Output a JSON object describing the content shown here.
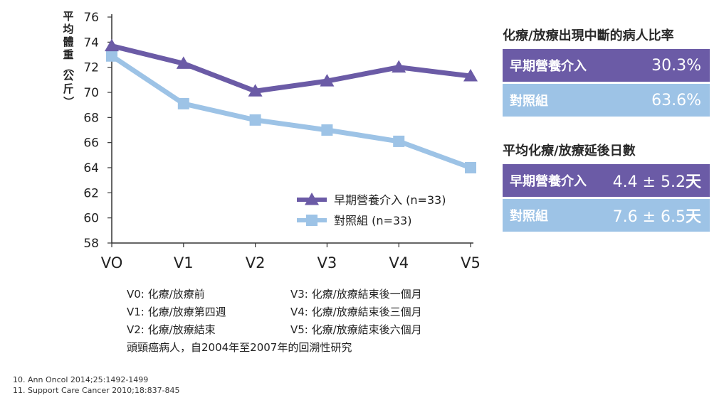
{
  "chart_data": {
    "type": "line",
    "title": "",
    "ylabel": "平均體重（公斤）",
    "xlabel": "",
    "categories": [
      "VO",
      "V1",
      "V2",
      "V3",
      "V4",
      "V5"
    ],
    "ylim": [
      58,
      76
    ],
    "yticks": [
      58,
      60,
      62,
      64,
      66,
      68,
      70,
      72,
      74,
      76
    ],
    "grid": false,
    "legend_position": "bottom-right",
    "series": [
      {
        "name": "早期營養介入 (n=33)",
        "marker": "triangle",
        "color": "#6b5ba6",
        "values": [
          73.7,
          72.3,
          70.1,
          70.9,
          72.0,
          71.3
        ]
      },
      {
        "name": "對照組 (n=33)",
        "marker": "square",
        "color": "#9dc3e6",
        "values": [
          72.9,
          69.1,
          67.8,
          67.0,
          66.1,
          64.0
        ]
      }
    ]
  },
  "panels": {
    "interruption": {
      "title": "化療/放療出現中斷的病人比率",
      "rows": [
        {
          "label": "早期營養介入",
          "value": "30.3%"
        },
        {
          "label": "對照組",
          "value": "63.6%"
        }
      ]
    },
    "delay": {
      "title": "平均化療/放療延後日數",
      "rows": [
        {
          "label": "早期營養介入",
          "value": "4.4 ± 5.2",
          "unit": "天"
        },
        {
          "label": "對照組",
          "value": "7.6 ± 6.5",
          "unit": "天"
        }
      ]
    }
  },
  "notes": {
    "visits": [
      "V0: 化療/放療前",
      "V3: 化療/放療結束後一個月",
      "V1: 化療/放療第四週",
      "V4: 化療/放療結束後三個月",
      "V2: 化療/放療結束",
      "V5: 化療/放療結束後六個月"
    ],
    "study": "頭頸癌病人，自2004年至2007年的回溯性研究"
  },
  "references": [
    "10. Ann Oncol 2014;25:1492-1499",
    "11. Support Care Cancer 2010;18:837-845"
  ],
  "colors": {
    "early": "#6b5ba6",
    "control": "#9dc3e6",
    "axis": "#333333"
  }
}
